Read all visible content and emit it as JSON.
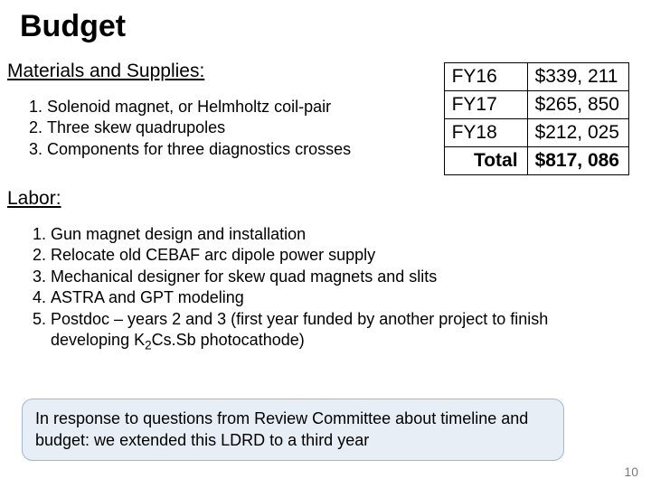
{
  "title": "Budget",
  "materials": {
    "heading": "Materials and Supplies:",
    "items": [
      "Solenoid magnet, or Helmholtz coil-pair",
      "Three skew quadrupoles",
      "Components for three diagnostics crosses"
    ]
  },
  "budget_table": {
    "rows": [
      {
        "label": "FY16",
        "amount": "$339, 211"
      },
      {
        "label": "FY17",
        "amount": "$265, 850"
      },
      {
        "label": "FY18",
        "amount": "$212, 025"
      }
    ],
    "total_label": "Total",
    "total_amount": "$817, 086",
    "border_color": "#000000",
    "font_size": 21
  },
  "labor": {
    "heading": "Labor:",
    "items": [
      "Gun magnet design and installation",
      "Relocate old CEBAF arc dipole power supply",
      "Mechanical designer for skew quad magnets and slits",
      "ASTRA and GPT modeling",
      "Postdoc – years 2 and 3 (first year funded by another project to finish developing K2Cs.Sb photocathode)"
    ]
  },
  "note": {
    "text": "In response to questions from Review Committee about timeline and budget: we extended this LDRD to a third year",
    "background_color": "#e8eef5",
    "border_color": "#9fb8d4",
    "border_radius": 12
  },
  "page_number": "10",
  "colors": {
    "background": "#ffffff",
    "text": "#000000",
    "page_number": "#7a7a7a"
  }
}
